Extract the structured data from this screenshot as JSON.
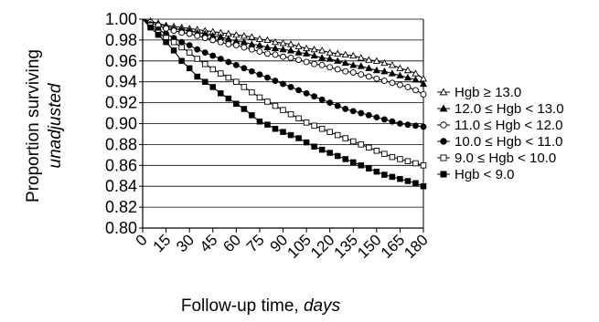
{
  "chart_data": {
    "type": "line",
    "title": "",
    "ylabel_line1": "Proportion surviving",
    "ylabel_line2": "unadjusted",
    "xlabel_prefix": "Follow-up time, ",
    "xlabel_italic": "days",
    "ylim": [
      0.8,
      1.0
    ],
    "yticks": [
      "0.80",
      "0.82",
      "0.84",
      "0.86",
      "0.88",
      "0.90",
      "0.92",
      "0.94",
      "0.96",
      "0.98",
      "1.00"
    ],
    "xlim": [
      0,
      180
    ],
    "xticks": [
      "0",
      "15",
      "30",
      "45",
      "60",
      "75",
      "90",
      "105",
      "120",
      "135",
      "150",
      "165",
      "180"
    ],
    "grid": "horizontal",
    "legend_position": "right",
    "x": [
      0,
      5,
      10,
      15,
      20,
      25,
      30,
      35,
      40,
      45,
      50,
      55,
      60,
      65,
      70,
      75,
      80,
      85,
      90,
      95,
      100,
      105,
      110,
      115,
      120,
      125,
      130,
      135,
      140,
      145,
      150,
      155,
      160,
      165,
      170,
      175,
      180
    ],
    "series": [
      {
        "name": "Hgb ≥ 13.0",
        "marker": "open-triangle",
        "values": [
          1.0,
          0.998,
          0.996,
          0.994,
          0.993,
          0.992,
          0.991,
          0.99,
          0.989,
          0.988,
          0.987,
          0.986,
          0.985,
          0.984,
          0.983,
          0.981,
          0.98,
          0.978,
          0.977,
          0.976,
          0.974,
          0.972,
          0.971,
          0.97,
          0.968,
          0.967,
          0.966,
          0.965,
          0.963,
          0.961,
          0.96,
          0.958,
          0.956,
          0.953,
          0.951,
          0.948,
          0.943
        ]
      },
      {
        "name": "12.0 ≤ Hgb < 13.0",
        "marker": "filled-triangle",
        "values": [
          1.0,
          0.998,
          0.996,
          0.993,
          0.991,
          0.99,
          0.989,
          0.987,
          0.986,
          0.984,
          0.983,
          0.981,
          0.979,
          0.978,
          0.976,
          0.975,
          0.973,
          0.972,
          0.971,
          0.97,
          0.968,
          0.967,
          0.965,
          0.963,
          0.962,
          0.96,
          0.958,
          0.956,
          0.955,
          0.953,
          0.951,
          0.95,
          0.948,
          0.946,
          0.944,
          0.942,
          0.938
        ]
      },
      {
        "name": "11.0 ≤ Hgb < 12.0",
        "marker": "open-circle",
        "values": [
          1.0,
          0.997,
          0.994,
          0.991,
          0.989,
          0.987,
          0.986,
          0.984,
          0.982,
          0.98,
          0.978,
          0.976,
          0.975,
          0.973,
          0.971,
          0.969,
          0.967,
          0.966,
          0.964,
          0.963,
          0.961,
          0.959,
          0.957,
          0.956,
          0.954,
          0.952,
          0.95,
          0.949,
          0.947,
          0.945,
          0.943,
          0.941,
          0.939,
          0.937,
          0.935,
          0.932,
          0.928
        ]
      },
      {
        "name": "10.0 ≤ Hgb < 11.0",
        "marker": "filled-circle",
        "values": [
          1.0,
          0.995,
          0.99,
          0.986,
          0.982,
          0.978,
          0.975,
          0.971,
          0.968,
          0.965,
          0.962,
          0.959,
          0.956,
          0.953,
          0.95,
          0.947,
          0.944,
          0.941,
          0.938,
          0.935,
          0.932,
          0.929,
          0.926,
          0.923,
          0.92,
          0.917,
          0.914,
          0.912,
          0.91,
          0.908,
          0.906,
          0.904,
          0.902,
          0.9,
          0.899,
          0.898,
          0.897
        ]
      },
      {
        "name": "9.0 ≤ Hgb < 10.0",
        "marker": "open-square",
        "values": [
          1.0,
          0.994,
          0.987,
          0.982,
          0.978,
          0.973,
          0.968,
          0.962,
          0.957,
          0.952,
          0.948,
          0.944,
          0.94,
          0.935,
          0.93,
          0.925,
          0.921,
          0.917,
          0.913,
          0.909,
          0.905,
          0.901,
          0.898,
          0.895,
          0.892,
          0.889,
          0.886,
          0.883,
          0.88,
          0.877,
          0.874,
          0.871,
          0.868,
          0.866,
          0.864,
          0.862,
          0.86
        ]
      },
      {
        "name": "Hgb < 9.0",
        "marker": "filled-square",
        "values": [
          1.0,
          0.992,
          0.985,
          0.978,
          0.97,
          0.96,
          0.953,
          0.945,
          0.94,
          0.935,
          0.929,
          0.924,
          0.919,
          0.914,
          0.908,
          0.902,
          0.899,
          0.895,
          0.892,
          0.889,
          0.886,
          0.882,
          0.878,
          0.875,
          0.872,
          0.869,
          0.866,
          0.863,
          0.86,
          0.857,
          0.854,
          0.851,
          0.849,
          0.847,
          0.845,
          0.843,
          0.84
        ]
      }
    ]
  }
}
